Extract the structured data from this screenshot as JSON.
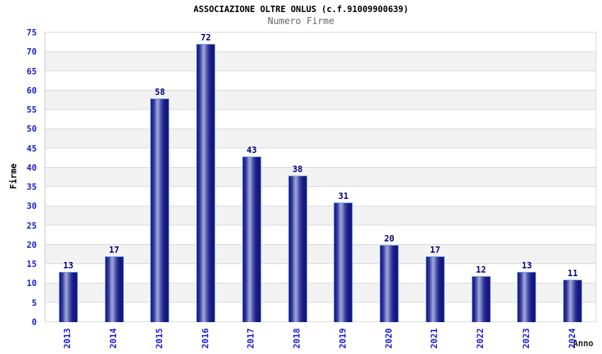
{
  "chart_data": {
    "type": "bar",
    "title": "ASSOCIAZIONE OLTRE ONLUS (c.f.91009900639)",
    "subtitle": "Numero Firme",
    "xlabel": "Anno",
    "ylabel": "Firme",
    "categories": [
      "2013",
      "2014",
      "2015",
      "2016",
      "2017",
      "2018",
      "2019",
      "2020",
      "2021",
      "2022",
      "2023",
      "2024"
    ],
    "values": [
      13,
      17,
      58,
      72,
      43,
      38,
      31,
      20,
      17,
      12,
      13,
      11
    ],
    "ylim": [
      0,
      75
    ],
    "ytick_step": 5,
    "grid": true,
    "bands": "alternating horizontal gray bands every 5 units",
    "legend_position": "none",
    "colors": {
      "title": "#000000",
      "subtitle": "#666666",
      "tick_label": "#2222d6",
      "value_label": "#000082",
      "axis_title": "#222222",
      "bar_dark": "#16167e",
      "bar_light": "#9aa5d8",
      "bar_border": "#6cabe5",
      "band": "#f2f2f2",
      "gridline": "#d8d8d8"
    }
  }
}
